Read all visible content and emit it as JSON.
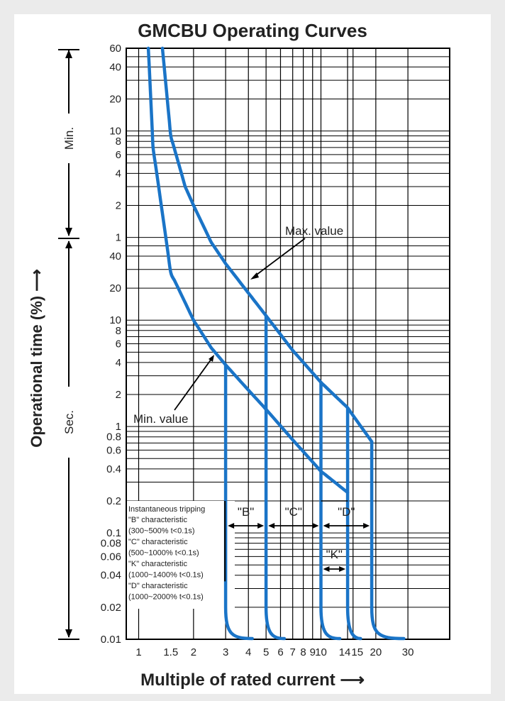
{
  "chart_data": {
    "type": "line",
    "title": "GMCBU Operating Curves",
    "xlabel": "Multiple of rated current",
    "ylabel": "Operational time (%)",
    "x_scale": "log",
    "y_scale": "log",
    "xlim": [
      1,
      30
    ],
    "x_ticks": [
      {
        "v": 1,
        "label": "1"
      },
      {
        "v": 1.5,
        "label": "1.5"
      },
      {
        "v": 2,
        "label": "2"
      },
      {
        "v": 3,
        "label": "3"
      },
      {
        "v": 4,
        "label": "4"
      },
      {
        "v": 5,
        "label": "5"
      },
      {
        "v": 6,
        "label": "6"
      },
      {
        "v": 7,
        "label": "7"
      },
      {
        "v": 8,
        "label": "8"
      },
      {
        "v": 9,
        "label": "9"
      },
      {
        "v": 10,
        "label": "10"
      },
      {
        "v": 14,
        "label": "14"
      },
      {
        "v": 15,
        "label": "15"
      },
      {
        "v": 20,
        "label": "20"
      },
      {
        "v": 30,
        "label": "30"
      }
    ],
    "y_unit_labels": {
      "minutes": "Min.",
      "seconds": "Sec."
    },
    "y_ticks_min": [
      "60",
      "40",
      "20",
      "10",
      "8",
      "6",
      "4",
      "2",
      "1"
    ],
    "y_ticks_sec": [
      "40",
      "20",
      "10",
      "8",
      "6",
      "4",
      "2",
      "1",
      "0.8",
      "0.6",
      "0.4",
      "0.2",
      "0.1",
      "0.08",
      "0.06",
      "0.04",
      "0.02",
      "0.01"
    ],
    "series": [
      {
        "name": "Max. value",
        "x": [
          1.35,
          1.5,
          1.8,
          2.0,
          2.5,
          3.0,
          4.0,
          5.0,
          7.0,
          10.0,
          14.0,
          19.0
        ],
        "y": [
          3600,
          540,
          180,
          120,
          54,
          34,
          18,
          11,
          5.2,
          2.6,
          1.5,
          0.72
        ]
      },
      {
        "name": "Min. value",
        "x": [
          1.13,
          1.2,
          1.5,
          2.0,
          2.5,
          3.0,
          4.0,
          5.0,
          7.0,
          10.0,
          14.0
        ],
        "y": [
          3600,
          420,
          28,
          10,
          5.5,
          3.8,
          2.2,
          1.45,
          0.75,
          0.38,
          0.24
        ]
      }
    ],
    "trip_lines": [
      {
        "x": 3,
        "y_top": 3.8,
        "tail_to": 4.2
      },
      {
        "x": 5,
        "y_top": 11,
        "tail_to": 6.3
      },
      {
        "x": 10,
        "y_top": 2.6,
        "tail_to": 12.7
      },
      {
        "x": 14,
        "y_top": 1.5,
        "tail_to": 16.5
      },
      {
        "x": 19,
        "y_top": 0.72,
        "tail_to": 28.5
      }
    ],
    "bands": [
      {
        "label": "\"B\"",
        "x_from": 3,
        "x_to": 5
      },
      {
        "label": "\"C\"",
        "x_from": 5,
        "x_to": 10
      },
      {
        "label": "\"D\"",
        "x_from": 10,
        "x_to": 19
      },
      {
        "label": "\"K\"",
        "x_from": 10,
        "x_to": 14
      }
    ],
    "annotations": {
      "max_label": "Max. value",
      "min_label": "Min. value"
    },
    "legend_title": "Instantaneous tripping",
    "legend_lines": [
      "\"B\" characteristic",
      "(300~500% t<0.1s)",
      "\"C\" characteristic",
      "(500~1000% t<0.1s)",
      "\"K\" characteristic",
      "(1000~1400% t<0.1s)",
      "\"D\" characteristic",
      "(1000~2000% t<0.1s)"
    ],
    "colors": {
      "curve": "#1a74c7",
      "grid": "#000000",
      "text": "#222222"
    }
  }
}
